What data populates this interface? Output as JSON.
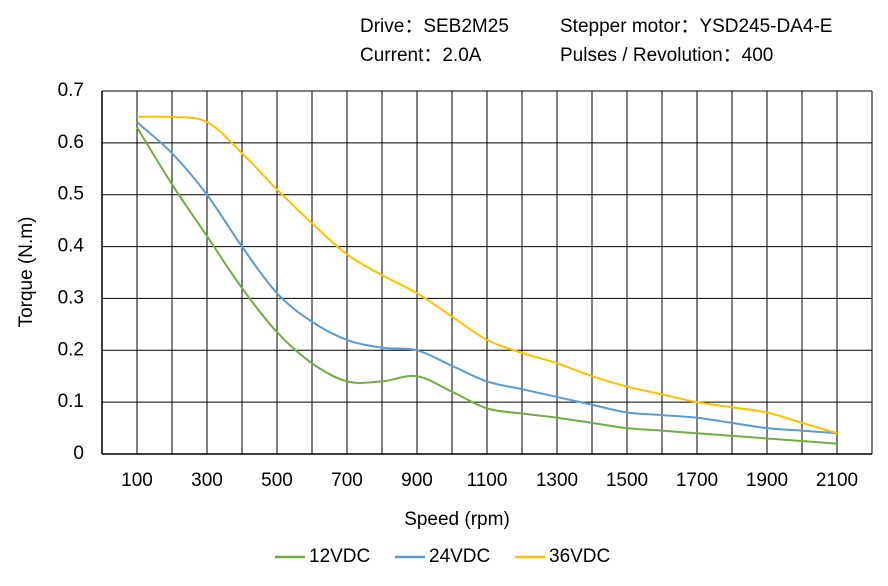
{
  "chart_data": {
    "type": "line",
    "annotations": [
      "Drive：SEB2M25",
      "Stepper motor：YSD245-DA4-E",
      "Current：2.0A",
      "Pulses / Revolution：400"
    ],
    "x_label": "Speed (rpm)",
    "y_label": "Torque (N.m)",
    "x": [
      100,
      200,
      300,
      400,
      500,
      600,
      700,
      800,
      900,
      1000,
      1100,
      1200,
      1300,
      1400,
      1500,
      1600,
      1700,
      1800,
      1900,
      2000,
      2100
    ],
    "series": [
      {
        "name": "12VDC",
        "color": "#70ad47",
        "values": [
          0.63,
          0.52,
          0.42,
          0.32,
          0.235,
          0.175,
          0.14,
          0.14,
          0.15,
          0.12,
          0.088,
          0.078,
          0.07,
          0.06,
          0.05,
          0.045,
          0.04,
          0.035,
          0.03,
          0.025,
          0.02
        ]
      },
      {
        "name": "24VDC",
        "color": "#5b9bd5",
        "values": [
          0.64,
          0.58,
          0.5,
          0.4,
          0.31,
          0.255,
          0.22,
          0.205,
          0.2,
          0.17,
          0.14,
          0.125,
          0.11,
          0.095,
          0.08,
          0.075,
          0.07,
          0.06,
          0.05,
          0.045,
          0.04
        ]
      },
      {
        "name": "36VDC",
        "color": "#ffc000",
        "values": [
          0.65,
          0.65,
          0.64,
          0.58,
          0.51,
          0.445,
          0.385,
          0.345,
          0.31,
          0.265,
          0.22,
          0.195,
          0.175,
          0.15,
          0.13,
          0.115,
          0.1,
          0.09,
          0.08,
          0.06,
          0.04
        ]
      }
    ],
    "xlim": [
      0,
      2200
    ],
    "xticks": [
      100,
      300,
      500,
      700,
      900,
      1100,
      1300,
      1500,
      1700,
      1900,
      2100
    ],
    "xgrid": [
      0,
      100,
      200,
      300,
      400,
      500,
      600,
      700,
      800,
      900,
      1000,
      1100,
      1200,
      1300,
      1400,
      1500,
      1600,
      1700,
      1800,
      1900,
      2000,
      2100,
      2200
    ],
    "ylim": [
      0,
      0.7
    ],
    "yticks": [
      0,
      0.1,
      0.2,
      0.3,
      0.4,
      0.5,
      0.6,
      0.7
    ],
    "grid": true,
    "legend": "bottom"
  }
}
